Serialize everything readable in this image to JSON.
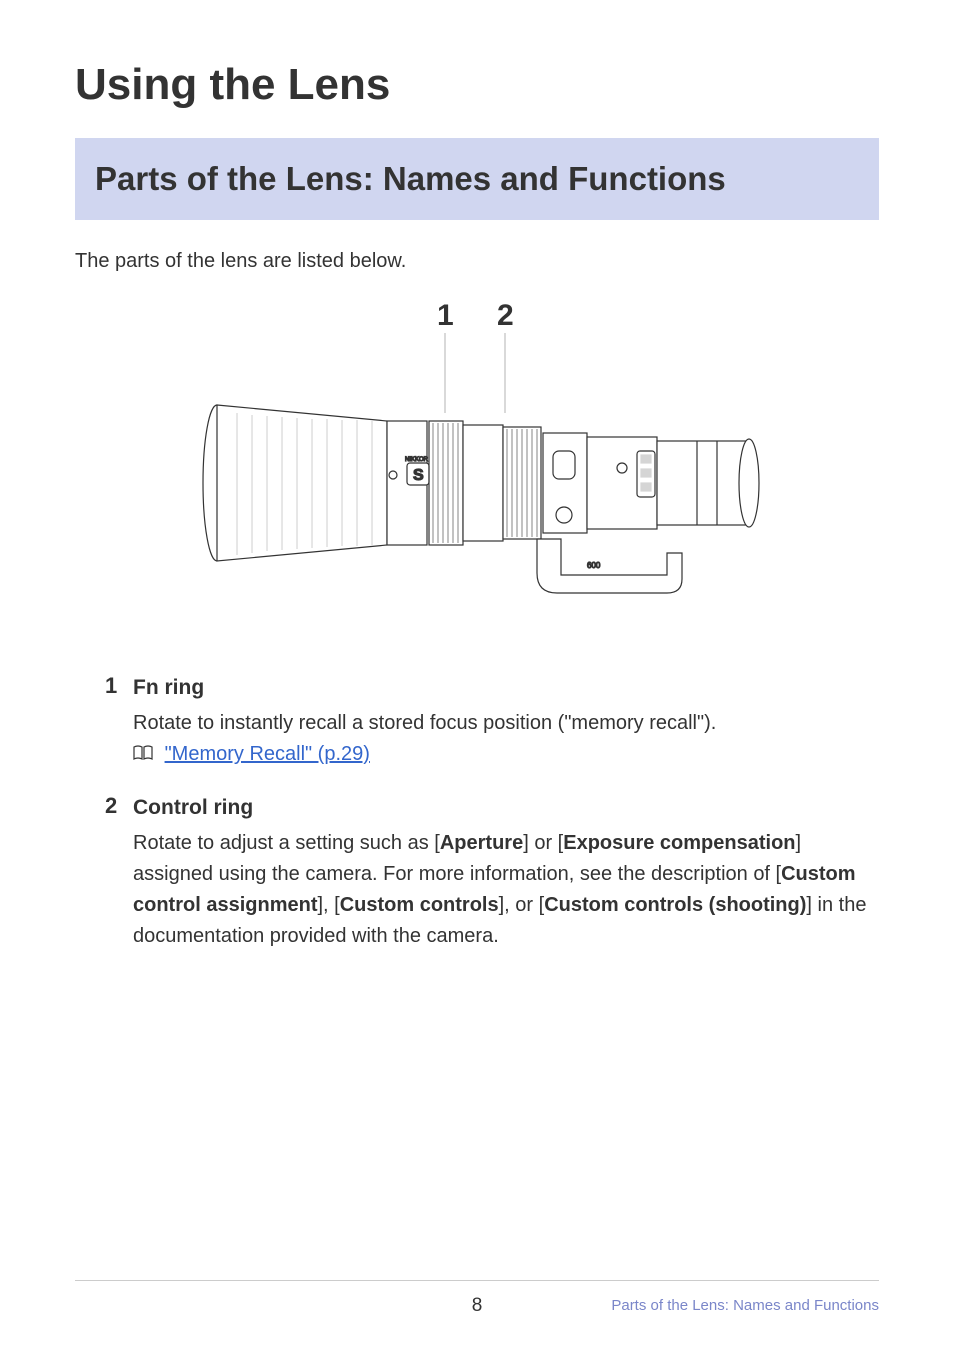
{
  "page": {
    "title": "Using the Lens",
    "section_title": "Parts of the Lens: Names and Functions",
    "intro": "The parts of the lens are listed below.",
    "page_number": "8",
    "footer_label": "Parts of the Lens: Names and Functions"
  },
  "diagram": {
    "callouts": [
      "1",
      "2"
    ],
    "callout_font_size": 30,
    "callout_font_weight": 700,
    "line_color": "#d9d9d9",
    "stroke_color": "#333333"
  },
  "items": [
    {
      "num": "1",
      "title": "Fn ring",
      "desc_plain": "Rotate to instantly recall a stored focus position (\"memory recall\").",
      "link_text": "\"Memory Recall\" (p.29)"
    },
    {
      "num": "2",
      "title": "Control ring",
      "desc_html_parts": [
        {
          "t": "Rotate to adjust a setting such as ["
        },
        {
          "b": "Aperture"
        },
        {
          "t": "] or ["
        },
        {
          "b": "Exposure compensation"
        },
        {
          "t": "] assigned using the camera. For more information, see the description of ["
        },
        {
          "b": "Custom control assignment"
        },
        {
          "t": "], ["
        },
        {
          "b": "Custom controls"
        },
        {
          "t": "], or ["
        },
        {
          "b": "Custom controls (shooting)"
        },
        {
          "t": "] in the documentation provided with the camera."
        }
      ]
    }
  ],
  "colors": {
    "banner_bg": "#d0d6f0",
    "text": "#333333",
    "link": "#3366cc",
    "footer_text": "#7a86c9",
    "rule": "#cccccc"
  }
}
